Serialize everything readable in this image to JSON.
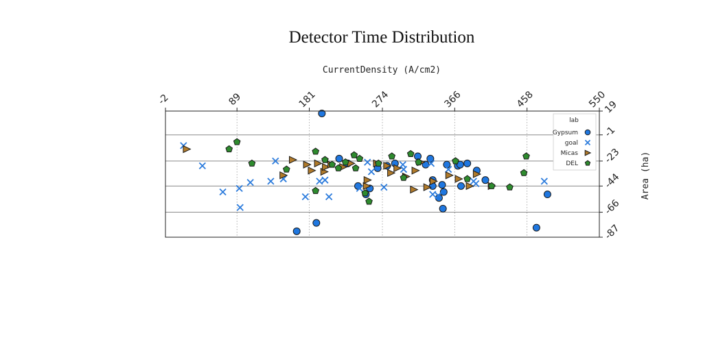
{
  "chart_data": {
    "type": "scatter",
    "title": "Detector Time Distribution",
    "xlabel": "CurrentDensity (A/cm2)",
    "ylabel": "Area (ha)",
    "x_axis_position": "top",
    "y_axis_position": "right",
    "y_inverted": true,
    "xlim": [
      -2,
      550
    ],
    "ylim": [
      19,
      -87
    ],
    "x_ticks": [
      "-2",
      "89",
      "181",
      "274",
      "366",
      "458",
      "550"
    ],
    "x_tick_values": [
      -2,
      89,
      181,
      274,
      366,
      458,
      550
    ],
    "y_ticks": [
      "19",
      "-1",
      "-23",
      "-44",
      "-66",
      "-87"
    ],
    "y_tick_values": [
      19,
      -1,
      -23,
      -44,
      -66,
      -87
    ],
    "grid": "vertical dotted at x ticks, horizontal solid at y ticks",
    "legend": {
      "title": "lab",
      "placement": "top-right",
      "entries": [
        "Gypsum",
        "goal",
        "Micas",
        "DEL"
      ]
    },
    "colors": {
      "Gypsum": "#1f77e0",
      "goal": "#2b7bdc",
      "Micas": "#b07a2a",
      "DEL": "#2e8b2e"
    },
    "series": [
      {
        "name": "Gypsum",
        "marker": "circle",
        "points": [
          [
            197,
            17
          ],
          [
            219,
            -21
          ],
          [
            230,
            -25
          ],
          [
            243,
            -44
          ],
          [
            253,
            -51
          ],
          [
            258,
            -46
          ],
          [
            268,
            -29
          ],
          [
            280,
            -27
          ],
          [
            290,
            -25
          ],
          [
            319,
            -19
          ],
          [
            329,
            -26
          ],
          [
            335,
            -21
          ],
          [
            338,
            -39
          ],
          [
            338,
            -44
          ],
          [
            352,
            -49
          ],
          [
            346,
            -54
          ],
          [
            350,
            -43
          ],
          [
            351,
            -63
          ],
          [
            356,
            -26
          ],
          [
            370,
            -27
          ],
          [
            373,
            -26
          ],
          [
            374,
            -44
          ],
          [
            394,
            -31
          ],
          [
            405,
            -39
          ],
          [
            382,
            -25
          ],
          [
            470,
            -79
          ],
          [
            484,
            -51
          ],
          [
            190,
            -75
          ],
          [
            165,
            -82
          ]
        ]
      },
      {
        "name": "goal",
        "marker": "x",
        "points": [
          [
            21,
            -10
          ],
          [
            45,
            -27
          ],
          [
            71,
            -49
          ],
          [
            92,
            -46
          ],
          [
            93,
            -62
          ],
          [
            106,
            -41
          ],
          [
            132,
            -40
          ],
          [
            138,
            -23
          ],
          [
            148,
            -38
          ],
          [
            176,
            -53
          ],
          [
            194,
            -40
          ],
          [
            201,
            -39
          ],
          [
            206,
            -53
          ],
          [
            255,
            -24
          ],
          [
            260,
            -32
          ],
          [
            276,
            -45
          ],
          [
            301,
            -30
          ],
          [
            338,
            -51
          ],
          [
            345,
            -52
          ],
          [
            358,
            -30
          ],
          [
            390,
            -40
          ],
          [
            393,
            -42
          ],
          [
            480,
            -40
          ],
          [
            245,
            -46
          ],
          [
            336,
            -25
          ],
          [
            300,
            -26
          ],
          [
            229,
            -25
          ]
        ]
      },
      {
        "name": "Micas",
        "marker": "triangle-right",
        "points": [
          [
            25,
            -13
          ],
          [
            148,
            -35
          ],
          [
            160,
            -22
          ],
          [
            178,
            -26
          ],
          [
            184,
            -31
          ],
          [
            192,
            -25
          ],
          [
            200,
            -32
          ],
          [
            202,
            -28
          ],
          [
            209,
            -26
          ],
          [
            224,
            -28
          ],
          [
            234,
            -25
          ],
          [
            254,
            -44
          ],
          [
            255,
            -39
          ],
          [
            267,
            -25
          ],
          [
            280,
            -27
          ],
          [
            285,
            -33
          ],
          [
            293,
            -29
          ],
          [
            304,
            -36
          ],
          [
            314,
            -47
          ],
          [
            316,
            -31
          ],
          [
            323,
            -24
          ],
          [
            331,
            -45
          ],
          [
            339,
            -40
          ],
          [
            359,
            -35
          ],
          [
            371,
            -38
          ],
          [
            385,
            -44
          ],
          [
            394,
            -34
          ],
          [
            413,
            -44
          ]
        ]
      },
      {
        "name": "DEL",
        "marker": "pentagon",
        "points": [
          [
            79,
            -13
          ],
          [
            89,
            -7
          ],
          [
            108,
            -25
          ],
          [
            152,
            -30
          ],
          [
            189,
            -48
          ],
          [
            189,
            -15
          ],
          [
            201,
            -22
          ],
          [
            210,
            -26
          ],
          [
            218,
            -29
          ],
          [
            227,
            -24
          ],
          [
            238,
            -18
          ],
          [
            240,
            -29
          ],
          [
            245,
            -21
          ],
          [
            252,
            -50
          ],
          [
            257,
            -57
          ],
          [
            269,
            -25
          ],
          [
            286,
            -19
          ],
          [
            301,
            -37
          ],
          [
            310,
            -17
          ],
          [
            320,
            -24
          ],
          [
            367,
            -23
          ],
          [
            382,
            -38
          ],
          [
            413,
            -44
          ],
          [
            436,
            -45
          ],
          [
            454,
            -33
          ],
          [
            457,
            -19
          ]
        ]
      }
    ]
  }
}
